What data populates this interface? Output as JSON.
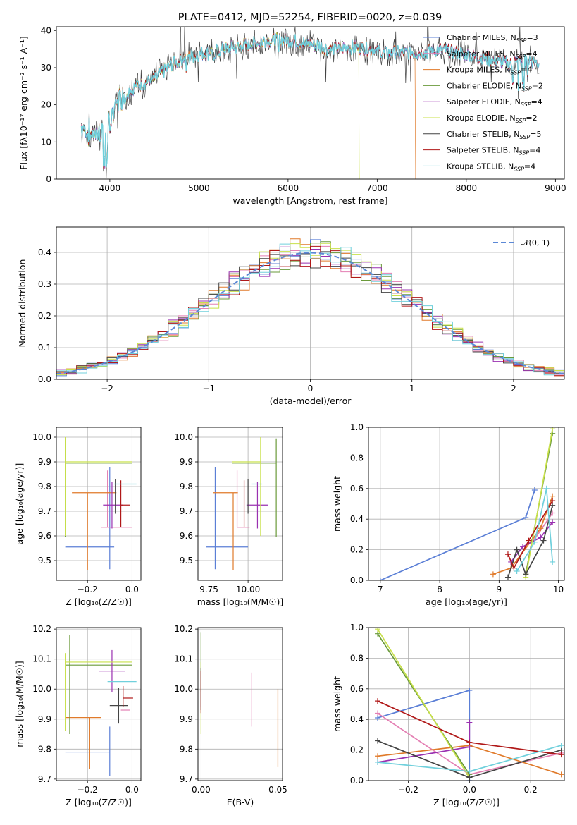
{
  "figure_title": "PLATE=0412, MJD=52254, FIBERID=0020, z=0.039",
  "colors": {
    "Chabrier MILES": "#5b7fd6",
    "Salpeter MILES": "#e47fb3",
    "Kroupa MILES": "#e07a2a",
    "Chabrier ELODIE": "#6a9a3a",
    "Salpeter ELODIE": "#9a30b0",
    "Kroupa ELODIE": "#c8e04a",
    "Chabrier STELIB": "#444444",
    "Salpeter STELIB": "#b01818",
    "Kroupa STELIB": "#70d0dc"
  },
  "chart_data": [
    {
      "id": "spectrum",
      "type": "line",
      "title": "PLATE=0412, MJD=52254, FIBERID=0020, z=0.039",
      "xlabel": "wavelength [Angstrom, rest frame]",
      "ylabel": "Flux [fλ10⁻¹⁷ erg cm⁻² s⁻¹ A⁻¹]",
      "xlim": [
        3400,
        9100
      ],
      "ylim": [
        0,
        41
      ],
      "xticks": [
        4000,
        5000,
        6000,
        7000,
        8000,
        9000
      ],
      "yticks": [
        0,
        10,
        20,
        30,
        40
      ],
      "grid": false,
      "legend_position": "top-right",
      "legend": [
        "Chabrier MILES, N_SSP=3",
        "Salpeter MILES, N_SSP=4",
        "Kroupa MILES, N_SSP=4",
        "Chabrier ELODIE, N_SSP=2",
        "Salpeter ELODIE, N_SSP=4",
        "Kroupa ELODIE, N_SSP=2",
        "Chabrier STELIB, N_SSP=5",
        "Salpeter STELIB, N_SSP=4",
        "Kroupa STELIB, N_SSP=4"
      ],
      "continuum": {
        "x": [
          3680,
          3800,
          3900,
          4000,
          4100,
          4300,
          4500,
          4700,
          4900,
          5100,
          5300,
          5500,
          5700,
          5900,
          6100,
          6300,
          6500,
          6700,
          6900,
          7100,
          7300,
          7500,
          7700,
          7900,
          8100,
          8300,
          8500,
          8700,
          8820
        ],
        "y": [
          14,
          12,
          13,
          15,
          22,
          25,
          27,
          31,
          33,
          34,
          35,
          36,
          37,
          37.5,
          37,
          36,
          35,
          35.5,
          35,
          34,
          34,
          34,
          35,
          34,
          33,
          32,
          31,
          32,
          31
        ]
      },
      "dropouts": [
        {
          "model": "Kroupa ELODIE",
          "from": 6800
        },
        {
          "model": "Kroupa MILES",
          "from": 7430
        }
      ]
    },
    {
      "id": "residuals",
      "type": "histogram",
      "xlabel": "(data-model)/error",
      "ylabel": "Normed distribution",
      "xlim": [
        -2.5,
        2.5
      ],
      "ylim": [
        0,
        0.48
      ],
      "xticks": [
        -2,
        -1,
        0,
        1,
        2
      ],
      "yticks": [
        0,
        0.1,
        0.2,
        0.3,
        0.4
      ],
      "grid": true,
      "bin_width": 0.1,
      "legend_position": "top-right",
      "reference": {
        "name": "𝒩(0, 1)",
        "mean": 0,
        "sigma": 1
      }
    },
    {
      "id": "age-vs-Z",
      "type": "errorbar",
      "xlabel": "Z [log₁₀(Z/Z☉)]",
      "ylabel": "age  [log₁₀(age/yr)]",
      "xlim": [
        -0.34,
        0.04
      ],
      "ylim": [
        9.42,
        10.04
      ],
      "xticks": [
        -0.2,
        0.0
      ],
      "yticks": [
        9.5,
        9.6,
        9.7,
        9.8,
        9.9,
        10.0
      ],
      "grid": true,
      "points": [
        {
          "model": "Chabrier MILES",
          "x": -0.1,
          "xerr": [
            0.2,
            0.02
          ],
          "y": 9.555,
          "yerr": [
            0.09,
            0.325
          ]
        },
        {
          "model": "Salpeter MILES",
          "x": -0.11,
          "xerr": [
            0.03,
            0.11
          ],
          "y": 9.635,
          "yerr": [
            0.0,
            0.23
          ]
        },
        {
          "model": "Kroupa MILES",
          "x": -0.2,
          "xerr": [
            0.07,
            0.13
          ],
          "y": 9.775,
          "yerr": [
            0.315,
            0.0
          ]
        },
        {
          "model": "Chabrier ELODIE",
          "x": -0.3,
          "xerr": [
            0.0,
            0.3
          ],
          "y": 9.895,
          "yerr": [
            0.3,
            0.1
          ]
        },
        {
          "model": "Salpeter ELODIE",
          "x": -0.09,
          "xerr": [
            0.04,
            0.05
          ],
          "y": 9.725,
          "yerr": [
            0.095,
            0.095
          ]
        },
        {
          "model": "Kroupa ELODIE",
          "x": -0.3,
          "xerr": [
            0.0,
            0.3
          ],
          "y": 9.9,
          "yerr": [
            0.3,
            0.1
          ]
        },
        {
          "model": "Chabrier STELIB",
          "x": -0.075,
          "xerr": [
            0.0,
            0.0
          ],
          "y": 9.76,
          "yerr": [
            0.07,
            0.07
          ]
        },
        {
          "model": "Salpeter STELIB",
          "x": -0.05,
          "xerr": [
            0.0,
            0.04
          ],
          "y": 9.725,
          "yerr": [
            0.09,
            0.1
          ]
        },
        {
          "model": "Kroupa STELIB",
          "x": -0.04,
          "xerr": [
            0.04,
            0.06
          ],
          "y": 9.81,
          "yerr": [
            0.0,
            0.0
          ]
        }
      ]
    },
    {
      "id": "age-vs-mass",
      "type": "errorbar",
      "xlabel": "mass [log₁₀(M/M☉)]",
      "ylabel": "",
      "xlim": [
        9.68,
        10.22
      ],
      "ylim": [
        9.42,
        10.04
      ],
      "xticks": [
        9.75,
        10.0
      ],
      "yticks": [
        9.5,
        9.6,
        9.7,
        9.8,
        9.9,
        10.0
      ],
      "grid": true,
      "points": [
        {
          "model": "Chabrier MILES",
          "x": 9.79,
          "xerr": [
            0.06,
            0.21
          ],
          "y": 9.555,
          "yerr": [
            0.09,
            0.325
          ]
        },
        {
          "model": "Salpeter MILES",
          "x": 9.93,
          "xerr": [
            0.0,
            0.08
          ],
          "y": 9.635,
          "yerr": [
            0.0,
            0.23
          ]
        },
        {
          "model": "Kroupa MILES",
          "x": 9.905,
          "xerr": [
            0.13,
            0.03
          ],
          "y": 9.775,
          "yerr": [
            0.315,
            0.0
          ]
        },
        {
          "model": "Chabrier ELODIE",
          "x": 10.18,
          "xerr": [
            0.28,
            0.0
          ],
          "y": 9.895,
          "yerr": [
            0.3,
            0.1
          ]
        },
        {
          "model": "Salpeter ELODIE",
          "x": 10.06,
          "xerr": [
            0.07,
            0.07
          ],
          "y": 9.725,
          "yerr": [
            0.095,
            0.095
          ]
        },
        {
          "model": "Kroupa ELODIE",
          "x": 10.08,
          "xerr": [
            0.18,
            0.0
          ],
          "y": 9.9,
          "yerr": [
            0.3,
            0.1
          ]
        },
        {
          "model": "Chabrier STELIB",
          "x": 10.0,
          "xerr": [
            0.0,
            0.0
          ],
          "y": 9.76,
          "yerr": [
            0.07,
            0.07
          ]
        },
        {
          "model": "Salpeter STELIB",
          "x": 9.975,
          "xerr": [
            0.0,
            0.0
          ],
          "y": 9.725,
          "yerr": [
            0.09,
            0.1
          ]
        },
        {
          "model": "Kroupa STELIB",
          "x": 10.02,
          "xerr": [
            0.0,
            0.07
          ],
          "y": 9.81,
          "yerr": [
            0.0,
            0.0
          ]
        }
      ]
    },
    {
      "id": "weight-vs-age",
      "type": "line",
      "xlabel": "age  [log₁₀(age/yr)]",
      "ylabel": "mass weight",
      "xlim": [
        6.8,
        10.1
      ],
      "ylim": [
        0,
        1
      ],
      "xticks": [
        7,
        8,
        9,
        10
      ],
      "yticks": [
        0.0,
        0.2,
        0.4,
        0.6,
        0.8,
        1.0
      ],
      "grid": true,
      "series": [
        {
          "model": "Chabrier MILES",
          "x": [
            7.0,
            9.45,
            9.6
          ],
          "y": [
            0.0,
            0.41,
            0.59
          ]
        },
        {
          "model": "Salpeter MILES",
          "x": [
            9.45,
            9.55,
            9.6,
            9.9
          ],
          "y": [
            0.04,
            0.25,
            0.27,
            0.44
          ]
        },
        {
          "model": "Kroupa MILES",
          "x": [
            8.9,
            9.2,
            9.7,
            9.9
          ],
          "y": [
            0.04,
            0.08,
            0.34,
            0.55
          ]
        },
        {
          "model": "Chabrier ELODIE",
          "x": [
            9.45,
            9.9
          ],
          "y": [
            0.04,
            0.96
          ]
        },
        {
          "model": "Salpeter ELODIE",
          "x": [
            9.2,
            9.4,
            9.7,
            9.9
          ],
          "y": [
            0.12,
            0.22,
            0.28,
            0.38
          ]
        },
        {
          "model": "Kroupa ELODIE",
          "x": [
            9.45,
            9.9
          ],
          "y": [
            0.02,
            0.99
          ]
        },
        {
          "model": "Chabrier STELIB",
          "x": [
            9.15,
            9.3,
            9.45,
            9.75,
            9.9
          ],
          "y": [
            0.02,
            0.2,
            0.04,
            0.26,
            0.49
          ]
        },
        {
          "model": "Salpeter STELIB",
          "x": [
            9.15,
            9.25,
            9.5,
            9.9
          ],
          "y": [
            0.17,
            0.08,
            0.26,
            0.52
          ]
        },
        {
          "model": "Kroupa STELIB",
          "x": [
            9.3,
            9.6,
            9.8,
            9.9
          ],
          "y": [
            0.06,
            0.25,
            0.6,
            0.12
          ]
        }
      ]
    },
    {
      "id": "mass-vs-Z",
      "type": "errorbar",
      "xlabel": "Z [log₁₀(Z/Z☉)]",
      "ylabel": "mass [log₁₀(M/M☉)]",
      "xlim": [
        -0.34,
        0.04
      ],
      "ylim": [
        9.695,
        10.205
      ],
      "xticks": [
        -0.2,
        0.0
      ],
      "yticks": [
        9.7,
        9.8,
        9.9,
        10.0,
        10.1,
        10.2
      ],
      "grid": true,
      "points": [
        {
          "model": "Chabrier MILES",
          "x": -0.1,
          "xerr": [
            0.2,
            0.0
          ],
          "y": 9.79,
          "yerr": [
            0.08,
            0.085
          ]
        },
        {
          "model": "Salpeter MILES",
          "x": -0.05,
          "xerr": [
            0.0,
            0.04
          ],
          "y": 9.93,
          "yerr": [
            0.0,
            0.0
          ]
        },
        {
          "model": "Kroupa MILES",
          "x": -0.19,
          "xerr": [
            0.11,
            0.05
          ],
          "y": 9.905,
          "yerr": [
            0.17,
            0.0
          ]
        },
        {
          "model": "Chabrier ELODIE",
          "x": -0.28,
          "xerr": [
            0.02,
            0.28
          ],
          "y": 10.08,
          "yerr": [
            0.23,
            0.1
          ]
        },
        {
          "model": "Salpeter ELODIE",
          "x": -0.09,
          "xerr": [
            0.06,
            0.06
          ],
          "y": 10.06,
          "yerr": [
            0.07,
            0.07
          ]
        },
        {
          "model": "Kroupa ELODIE",
          "x": -0.3,
          "xerr": [
            0.0,
            0.3
          ],
          "y": 10.09,
          "yerr": [
            0.23,
            0.03
          ]
        },
        {
          "model": "Chabrier STELIB",
          "x": -0.06,
          "xerr": [
            0.04,
            0.04
          ],
          "y": 9.945,
          "yerr": [
            0.06,
            0.06
          ]
        },
        {
          "model": "Salpeter STELIB",
          "x": -0.04,
          "xerr": [
            0.0,
            0.045
          ],
          "y": 9.97,
          "yerr": [
            0.03,
            0.04
          ]
        },
        {
          "model": "Kroupa STELIB",
          "x": -0.05,
          "xerr": [
            0.06,
            0.07
          ],
          "y": 10.025,
          "yerr": [
            0.0,
            0.0
          ]
        }
      ]
    },
    {
      "id": "mass-vs-EBV",
      "type": "errorbar",
      "xlabel": "E(B-V)",
      "ylabel": "",
      "xlim": [
        -0.002,
        0.053
      ],
      "ylim": [
        9.695,
        10.205
      ],
      "xticks": [
        0.0,
        0.05
      ],
      "yticks": [
        9.7,
        9.8,
        9.9,
        10.0,
        10.1,
        10.2
      ],
      "grid": true,
      "points": [
        {
          "model": "Chabrier MILES",
          "x": 0.0,
          "xerr": [
            0.0,
            0.0
          ],
          "y": 9.79,
          "yerr": [
            0.0,
            0.0
          ]
        },
        {
          "model": "Salpeter MILES",
          "x": 0.033,
          "xerr": [
            0.0,
            0.0
          ],
          "y": 9.965,
          "yerr": [
            0.09,
            0.09
          ]
        },
        {
          "model": "Kroupa MILES",
          "x": 0.05,
          "xerr": [
            0.0,
            0.0
          ],
          "y": 9.87,
          "yerr": [
            0.13,
            0.13
          ]
        },
        {
          "model": "Chabrier ELODIE",
          "x": 0.0,
          "xerr": [
            0.0,
            0.0
          ],
          "y": 10.09,
          "yerr": [
            0.1,
            0.1
          ]
        },
        {
          "model": "Salpeter ELODIE",
          "x": 0.0,
          "xerr": [
            0.0,
            0.0
          ],
          "y": 10.0,
          "yerr": [
            0.06,
            0.06
          ]
        },
        {
          "model": "Kroupa ELODIE",
          "x": 0.0,
          "xerr": [
            0.0,
            0.0
          ],
          "y": 9.97,
          "yerr": [
            0.12,
            0.12
          ]
        },
        {
          "model": "Chabrier STELIB",
          "x": 0.0,
          "xerr": [
            0.0,
            0.0
          ],
          "y": 10.0,
          "yerr": [
            0.07,
            0.07
          ]
        },
        {
          "model": "Salpeter STELIB",
          "x": 0.0,
          "xerr": [
            0.0,
            0.0
          ],
          "y": 10.0,
          "yerr": [
            0.08,
            0.06
          ]
        },
        {
          "model": "Kroupa STELIB",
          "x": 0.0,
          "xerr": [
            0.0,
            0.0
          ],
          "y": 10.0,
          "yerr": [
            0.0,
            0.0
          ]
        }
      ]
    },
    {
      "id": "weight-vs-Z",
      "type": "line",
      "xlabel": "Z [log₁₀(Z/Z☉)]",
      "ylabel": "mass weight",
      "xlim": [
        -0.33,
        0.31
      ],
      "ylim": [
        0,
        1
      ],
      "xticks": [
        -0.2,
        0.0,
        0.2
      ],
      "yticks": [
        0.0,
        0.2,
        0.4,
        0.6,
        0.8,
        1.0
      ],
      "grid": true,
      "series": [
        {
          "model": "Chabrier MILES",
          "x": [
            -0.3,
            0.0,
            0.0
          ],
          "y": [
            0.41,
            0.59,
            0.0
          ]
        },
        {
          "model": "Salpeter MILES",
          "x": [
            -0.3,
            0.0,
            0.3
          ],
          "y": [
            0.44,
            0.04,
            0.18
          ]
        },
        {
          "model": "Kroupa MILES",
          "x": [
            -0.3,
            0.0,
            0.3
          ],
          "y": [
            0.16,
            0.23,
            0.04
          ]
        },
        {
          "model": "Chabrier ELODIE",
          "x": [
            -0.3,
            0.0
          ],
          "y": [
            0.96,
            0.04
          ]
        },
        {
          "model": "Salpeter ELODIE",
          "x": [
            -0.3,
            0.0,
            0.0
          ],
          "y": [
            0.12,
            0.22,
            0.38
          ]
        },
        {
          "model": "Kroupa ELODIE",
          "x": [
            -0.3,
            0.0
          ],
          "y": [
            0.99,
            0.02
          ]
        },
        {
          "model": "Chabrier STELIB",
          "x": [
            -0.3,
            0.0,
            0.3
          ],
          "y": [
            0.26,
            0.02,
            0.2
          ]
        },
        {
          "model": "Salpeter STELIB",
          "x": [
            -0.3,
            0.0,
            0.3
          ],
          "y": [
            0.52,
            0.25,
            0.17
          ]
        },
        {
          "model": "Kroupa STELIB",
          "x": [
            -0.3,
            0.0,
            0.3
          ],
          "y": [
            0.12,
            0.06,
            0.23
          ]
        }
      ]
    }
  ]
}
